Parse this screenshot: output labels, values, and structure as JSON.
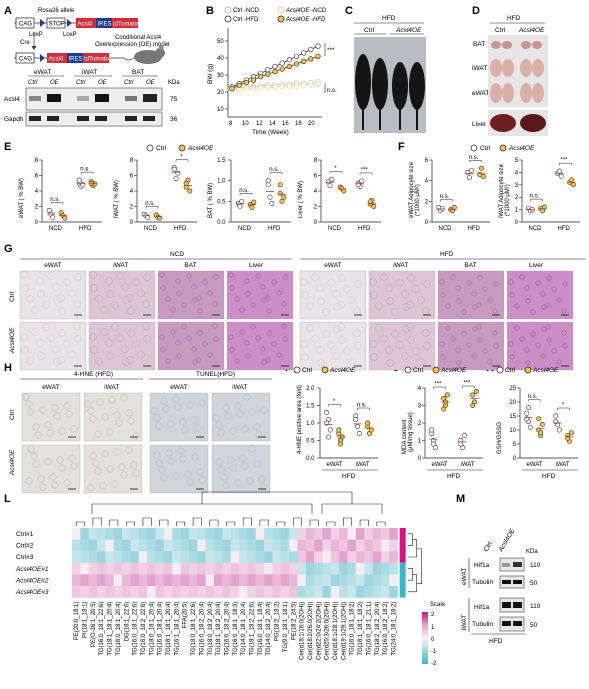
{
  "panel_letters": [
    "A",
    "B",
    "C",
    "D",
    "E",
    "F",
    "G",
    "H",
    "I",
    "J",
    "K",
    "L",
    "M"
  ],
  "panelA": {
    "allele_label": "Rosa26 allele",
    "boxes": [
      "CAG",
      "STOP",
      "Acsl4",
      "IRES",
      "tdTomato"
    ],
    "loxp": [
      "LoxP",
      "LoxP"
    ],
    "cre": "Cre",
    "model_text": [
      "Conditional Acsl4",
      "Overexpression (OE) model"
    ],
    "blot_groups": [
      "eWAT",
      "iWAT",
      "BAT"
    ],
    "lanes": [
      "Ctrl",
      "OE"
    ],
    "kda_label": "KDa",
    "rows": [
      {
        "name": "Acsl4",
        "kda": "75"
      },
      {
        "name": "Gapdh",
        "kda": "36"
      }
    ]
  },
  "panelB": {
    "legend": [
      "Ctrl -NCD",
      "Acsl4OE -NCD",
      "Ctrl -HFD",
      "Acsl4OE -HFD"
    ],
    "ylabel": "BW (g)",
    "xlabel": "Time (Week)",
    "xticks": [
      "8",
      "10",
      "12",
      "14",
      "16",
      "18",
      "20"
    ],
    "yticks": [
      "10",
      "20",
      "30",
      "40",
      "50"
    ],
    "sig": [
      "***",
      "n.s."
    ]
  },
  "panelC": {
    "diet": "HFD",
    "groups": [
      "Ctrl",
      "Acsl4OE"
    ]
  },
  "panelD": {
    "diet": "HFD",
    "groups": [
      "Ctrl",
      "Acsl4OE"
    ],
    "tissues": [
      "BAT",
      "iWAT",
      "eWAT",
      "Liver"
    ]
  },
  "panelE": {
    "legend": [
      "Ctrl",
      "Acsl4OE"
    ],
    "plots": [
      {
        "ylabel": "eWAT ( % BW)",
        "yticks": [
          "0",
          "2",
          "4",
          "6",
          "8"
        ],
        "sig": [
          "n.s.",
          "n.s."
        ]
      },
      {
        "ylabel": "iWAT ( % BW)",
        "yticks": [
          "0",
          "2",
          "4",
          "6",
          "8"
        ],
        "sig": [
          "n.s.",
          "*"
        ]
      },
      {
        "ylabel": "BAT ( % BW)",
        "yticks": [
          "0.0",
          "0.5",
          "1.0",
          "1.5"
        ],
        "sig": [
          "n.s.",
          "n.s."
        ]
      },
      {
        "ylabel": "Liver ( % BW)",
        "yticks": [
          "0",
          "2",
          "4",
          "6",
          "8"
        ],
        "sig": [
          "*",
          "***"
        ]
      }
    ],
    "xticks": [
      "NCD",
      "HFD"
    ]
  },
  "panelF": {
    "legend": [
      "Ctrl",
      "Acsl4OE"
    ],
    "plots": [
      {
        "ylabel": "eWAT Adipocyte size",
        "ysub": "(*1000 μM²)",
        "yticks": [
          "0",
          "2",
          "4",
          "6"
        ],
        "sig": [
          "n.s.",
          "n.s."
        ]
      },
      {
        "ylabel": "iWAT Adipocyte size",
        "ysub": "(*1000 μM²)",
        "yticks": [
          "0",
          "1",
          "2",
          "3",
          "4",
          "5"
        ],
        "sig": [
          "n.s.",
          "***"
        ]
      }
    ],
    "xticks": [
      "NCD",
      "HFD"
    ]
  },
  "panelG": {
    "conditions": [
      "NCD",
      "HFD"
    ],
    "tissues": [
      "eWAT",
      "iWAT",
      "BAT",
      "Liver"
    ],
    "rows": [
      "Ctrl",
      "Acsl4OE"
    ]
  },
  "panelH": {
    "headers": [
      "4-HNE (HFD)",
      "TUNEL(HFD)"
    ],
    "tissues": [
      "eWAT",
      "iWAT",
      "eWAT",
      "iWAT"
    ],
    "rows": [
      "Ctrl",
      "Acsl4OE"
    ]
  },
  "panelI": {
    "legend": [
      "Ctrl",
      "Acsl4OE"
    ],
    "ylabel": "4-HNE positive area (fold)",
    "yticks": [
      "0.0",
      "0.5",
      "1.0",
      "1.5",
      "2.0"
    ],
    "xticks": [
      "eWAT",
      "iWAT"
    ],
    "sig": [
      "*",
      "n.s."
    ],
    "diet": "HFD"
  },
  "panelJ": {
    "legend": [
      "Ctrl",
      "Acsl4OE"
    ],
    "ylabel": "MDA content",
    "ysub": "(μM/mg tissue)",
    "yticks": [
      "0",
      "1",
      "2",
      "3",
      "4"
    ],
    "xticks": [
      "eWAT",
      "iWAT"
    ],
    "sig": [
      "***",
      "***"
    ],
    "diet": "HFD"
  },
  "panelK": {
    "legend": [
      "Ctrl",
      "Acsl4OE"
    ],
    "ylabel": "GSH/GSSG",
    "yticks": [
      "0",
      "5",
      "10",
      "15",
      "20",
      "25"
    ],
    "xticks": [
      "eWAT",
      "iWAT"
    ],
    "sig": [
      "n.s.",
      "*"
    ],
    "diet": "HFD"
  },
  "panelL": {
    "rows": [
      "Ctrl#1",
      "Ctrl#2",
      "Ctrl#3",
      "Acsl4OE#1",
      "Acsl4OE#2",
      "Acsl4OE#3"
    ],
    "columns": [
      "PE(20:0_18:1)",
      "PI(18:1_18:1)",
      "PE(O-16:1_20:5)",
      "TG(16:0_18:1_22:6)",
      "TG(18:1_18:1_20:4)",
      "TG(16:0_18:1_20:4)",
      "DG(18:1_22:6)",
      "TG(16:0_18:1_22:6)",
      "TG(16:0_18:2_22:6)",
      "TG(18:0_18:1_20:4)",
      "TG(16:0_18:1_20:4)",
      "TG(18:1_18:1_20:4)",
      "TG(16:1_18:1_20:4)",
      "FFA(20:5)",
      "TG(18:0_18:1_22:6)",
      "TG(16:0_18:2_20:4)",
      "TG(18:0_18:2_20:4)",
      "TG(18:1_18:2_20:4)",
      "TG(16:0_18:2_20:4)",
      "TG(16:0_18:1_18:3)",
      "TG(14:0_18:1_20:4)",
      "TG(18:1_18:2_22:6)",
      "TG(16:0_18:1_18:4)",
      "TG(14:0_18:2_20:4)",
      "PG(18:2_18:2)",
      "TG(9:0_18:1_18:1)",
      "PE(18:2_24:5)",
      "Cer(d18:1/16:0(2OH))",
      "Cer(d18:2/26:0(2OH))",
      "Cer(d22:0/24:2(2OH))",
      "Cer(d20:3/26:0(2OH))",
      "Cer(d18:1/28:1(2OH))",
      "Cer(d19:1/29:1(2OH))",
      "TG(16:0_18:1_18:2)",
      "TG(18:1_18:1_18:2)",
      "TG(16:0_18:1_21:1)",
      "TG(18:2_18:2_20:4)",
      "TG(16:0_18:2_18:2)",
      "TG(24:0_18:1_18:2)"
    ],
    "scale_title": "Scale",
    "scale_ticks": [
      "2",
      "1",
      "0",
      "-1",
      "-2"
    ],
    "scale_colors": [
      "#c9177e",
      "#e7a0cd",
      "#f6f0f4",
      "#9fd6e0",
      "#37b7c8"
    ],
    "group_colors": [
      "#d6127b",
      "#3ab8c9"
    ]
  },
  "panelM": {
    "lanes": [
      "Ctrl",
      "Acsl4OE"
    ],
    "kda_label": "KDa",
    "tissues": [
      "eWAT",
      "iWAT"
    ],
    "rows": [
      {
        "name": "Hif1a",
        "kda": "110"
      },
      {
        "name": "Tubulin",
        "kda": "50"
      }
    ],
    "diet": "HFD"
  }
}
